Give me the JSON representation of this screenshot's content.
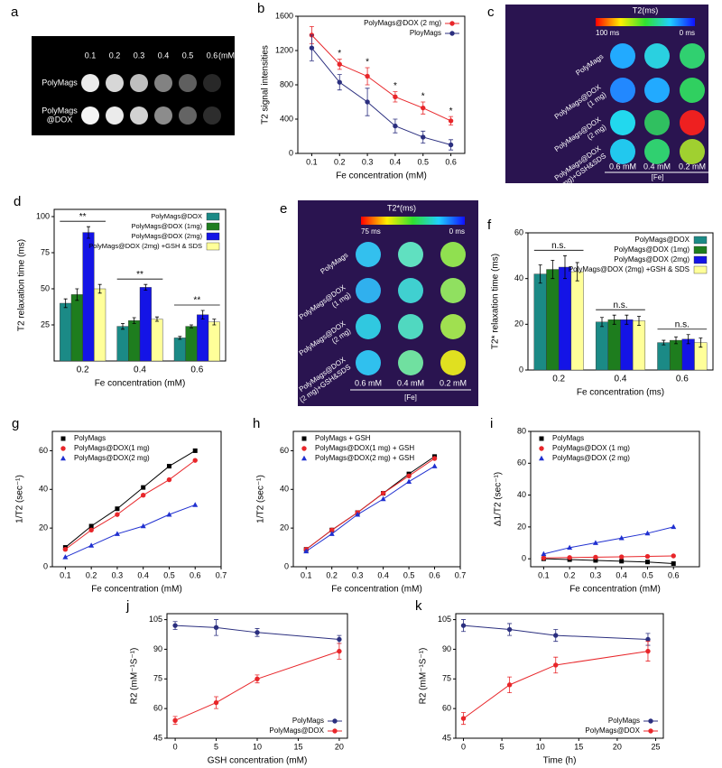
{
  "chart_data": [
    {
      "type": "line",
      "panel_label": "b",
      "xlabel": "Fe concentration (mM)",
      "ylabel": "T2 signal  intensities",
      "x": [
        0.1,
        0.2,
        0.3,
        0.4,
        0.5,
        0.6
      ],
      "xlim": [
        0.05,
        0.65
      ],
      "xticks": [
        0.1,
        0.2,
        0.3,
        0.4,
        0.5,
        0.6
      ],
      "ylim": [
        0,
        1600
      ],
      "yticks": [
        0,
        400,
        800,
        1200,
        1600
      ],
      "legend": "upper right",
      "series": [
        {
          "name": "PolyMags@DOX (2 mg)",
          "color": "#e8262a",
          "values": [
            1380,
            1040,
            900,
            660,
            530,
            380
          ],
          "errors": [
            100,
            60,
            100,
            60,
            70,
            50
          ]
        },
        {
          "name": "PloyMags",
          "color": "#2b2f7f",
          "values": [
            1230,
            830,
            600,
            320,
            190,
            100
          ],
          "errors": [
            150,
            90,
            160,
            80,
            70,
            60
          ]
        }
      ],
      "annotations": [
        null,
        "*",
        "*",
        "*",
        "*",
        "*"
      ]
    },
    {
      "type": "bar",
      "panel_label": "d",
      "xlabel": "Fe concentration (mM)",
      "ylabel": "T2 relaxation time (ms)",
      "categories": [
        "0.2",
        "0.4",
        "0.6"
      ],
      "ylim": [
        0,
        105
      ],
      "yticks": [
        25,
        50,
        75,
        100
      ],
      "legend": "upper right",
      "series": [
        {
          "name": "PolyMags@DOX",
          "color": "#1b8a86",
          "values": [
            40,
            24,
            16
          ],
          "errors": [
            3,
            2,
            1
          ]
        },
        {
          "name": "PolyMags@DOX (1mg)",
          "color": "#1e7d1e",
          "values": [
            46,
            28,
            24
          ],
          "errors": [
            4,
            2,
            1
          ]
        },
        {
          "name": "PolyMags@DOX (2mg)",
          "color": "#1414e6",
          "values": [
            89,
            51,
            32
          ],
          "errors": [
            4,
            2,
            3
          ]
        },
        {
          "name": "PolyMags@DOX (2mg) +GSH & SDS",
          "color": "#ffff99",
          "values": [
            50,
            29,
            27
          ],
          "errors": [
            3,
            1.5,
            2
          ]
        }
      ],
      "annotations": [
        "**",
        "**",
        "**"
      ]
    },
    {
      "type": "bar",
      "panel_label": "f",
      "xlabel": "Fe concentration (ms)",
      "ylabel": "T2* relaxation time (ms)",
      "categories": [
        "0.2",
        "0.4",
        "0.6"
      ],
      "ylim": [
        0,
        60
      ],
      "yticks": [
        0,
        20,
        40,
        60
      ],
      "legend": "upper right",
      "series": [
        {
          "name": "PolyMags@DOX",
          "color": "#1b8a86",
          "values": [
            42,
            21,
            12
          ],
          "errors": [
            4,
            2,
            1
          ]
        },
        {
          "name": "PolyMags@DOX (1mg)",
          "color": "#1e7d1e",
          "values": [
            44,
            22,
            13
          ],
          "errors": [
            4,
            2,
            1.5
          ]
        },
        {
          "name": "PolyMags@DOX (2mg)",
          "color": "#1414e6",
          "values": [
            45,
            22,
            13.5
          ],
          "errors": [
            5,
            2,
            2
          ]
        },
        {
          "name": "PolyMags@DOX (2mg) +GSH & SDS",
          "color": "#ffff99",
          "values": [
            43,
            21.5,
            12
          ],
          "errors": [
            4,
            2,
            2
          ]
        }
      ],
      "annotations": [
        "n.s.",
        "n.s.",
        "n.s."
      ]
    },
    {
      "type": "scatter",
      "panel_label": "g",
      "xlabel": "Fe concentration (mM)",
      "ylabel": "1/T2 (sec⁻¹)",
      "x": [
        0.1,
        0.2,
        0.3,
        0.4,
        0.5,
        0.6
      ],
      "xlim": [
        0.05,
        0.7
      ],
      "xticks": [
        0.1,
        0.2,
        0.3,
        0.4,
        0.5,
        0.6,
        0.7
      ],
      "ylim": [
        0,
        70
      ],
      "yticks": [
        0,
        20,
        40,
        60
      ],
      "legend": "upper left",
      "series": [
        {
          "name": "PolyMags",
          "color": "#000000",
          "marker": "square",
          "values": [
            10,
            21,
            30,
            41,
            52,
            60
          ]
        },
        {
          "name": "PolyMags@DOX(1 mg)",
          "color": "#e8262a",
          "marker": "circle",
          "values": [
            9,
            19,
            27,
            37,
            45,
            55
          ]
        },
        {
          "name": "PolyMags@DOX(2 mg)",
          "color": "#2030d0",
          "marker": "triangle",
          "values": [
            5,
            11,
            17,
            21,
            27,
            32
          ]
        }
      ]
    },
    {
      "type": "scatter",
      "panel_label": "h",
      "xlabel": "Fe concentration (mM)",
      "ylabel": "1/T2 (sec⁻¹)",
      "x": [
        0.1,
        0.2,
        0.3,
        0.4,
        0.5,
        0.6
      ],
      "xlim": [
        0.05,
        0.7
      ],
      "xticks": [
        0.1,
        0.2,
        0.3,
        0.4,
        0.5,
        0.6,
        0.7
      ],
      "ylim": [
        0,
        70
      ],
      "yticks": [
        0,
        20,
        40,
        60
      ],
      "legend": "upper left",
      "series": [
        {
          "name": "PolyMags + GSH",
          "color": "#000000",
          "marker": "square",
          "values": [
            9,
            19,
            28,
            38,
            48,
            57
          ]
        },
        {
          "name": "PolyMags@DOX(1 mg) + GSH",
          "color": "#e8262a",
          "marker": "circle",
          "values": [
            9,
            19,
            28,
            38,
            47,
            56
          ]
        },
        {
          "name": "PolyMags@DOX(2 mg) + GSH",
          "color": "#2030d0",
          "marker": "triangle",
          "values": [
            8,
            17,
            27,
            35,
            44,
            52
          ]
        }
      ]
    },
    {
      "type": "scatter",
      "panel_label": "i",
      "xlabel": "Fe concentration (mM)",
      "ylabel": "Δ1/T2 (sec⁻¹)",
      "x": [
        0.1,
        0.2,
        0.3,
        0.4,
        0.5,
        0.6
      ],
      "xlim": [
        0.05,
        0.7
      ],
      "xticks": [
        0.1,
        0.2,
        0.3,
        0.4,
        0.5,
        0.6
      ],
      "ylim": [
        -5,
        80
      ],
      "yticks": [
        0,
        20,
        40,
        60,
        80
      ],
      "legend": "upper left",
      "series": [
        {
          "name": "PolyMags",
          "color": "#000000",
          "marker": "square",
          "values": [
            0,
            -0.5,
            -1,
            -1.5,
            -2,
            -3
          ]
        },
        {
          "name": "PolyMags@DOX (1 mg)",
          "color": "#e8262a",
          "marker": "circle",
          "values": [
            0.5,
            0.8,
            1,
            1.2,
            1.5,
            1.8
          ]
        },
        {
          "name": "PolyMags@DOX (2 mg)",
          "color": "#2030d0",
          "marker": "triangle",
          "values": [
            3,
            7,
            10,
            13,
            16,
            20
          ]
        }
      ]
    },
    {
      "type": "line",
      "panel_label": "j",
      "xlabel": "GSH concentration (mM)",
      "ylabel": "R2 (mM⁻¹S⁻¹)",
      "x": [
        0,
        5,
        10,
        20
      ],
      "xlim": [
        -1,
        21
      ],
      "xticks": [
        0,
        5,
        10,
        15,
        20
      ],
      "ylim": [
        45,
        108
      ],
      "yticks": [
        45,
        60,
        75,
        90,
        105
      ],
      "legend": "lower right",
      "series": [
        {
          "name": "PolyMags",
          "color": "#2b2f7f",
          "values": [
            102,
            101,
            98.5,
            95
          ],
          "errors": [
            2,
            4,
            2,
            2
          ]
        },
        {
          "name": "PolyMags@DOX",
          "color": "#e8262a",
          "values": [
            54,
            63,
            75,
            89
          ],
          "errors": [
            2,
            3,
            2,
            4
          ]
        }
      ]
    },
    {
      "type": "line",
      "panel_label": "k",
      "xlabel": "Time (h)",
      "ylabel": "R2 (mM⁻¹S⁻¹)",
      "x": [
        0,
        6,
        12,
        24
      ],
      "xlim": [
        -1,
        26
      ],
      "xticks": [
        0,
        5,
        10,
        15,
        20,
        25
      ],
      "ylim": [
        45,
        108
      ],
      "yticks": [
        45,
        60,
        75,
        90,
        105
      ],
      "legend": "lower right",
      "series": [
        {
          "name": "PolyMags",
          "color": "#2b2f7f",
          "values": [
            102,
            100,
            97,
            95
          ],
          "errors": [
            3,
            3,
            3,
            3
          ]
        },
        {
          "name": "PolyMags@DOX",
          "color": "#e8262a",
          "values": [
            55,
            72,
            82,
            89
          ],
          "errors": [
            3,
            4,
            4,
            5
          ]
        }
      ]
    }
  ],
  "images": [
    {
      "panel_label": "a",
      "columns": [
        "0.1",
        "0.2",
        "0.3",
        "0.4",
        "0.5",
        "0.6"
      ],
      "unit": "(mM)",
      "rows": [
        [
          "PolyMags"
        ],
        [
          "PolyMags",
          "@DOX"
        ]
      ]
    },
    {
      "panel_label": "c",
      "colorbar_title": "T2(ms)",
      "colorbar_ticks": [
        "100 ms",
        "0 ms"
      ],
      "columns": [
        "0.6 mM",
        "0.4 mM",
        "0.2 mM"
      ],
      "axis": "[Fe]",
      "rows": [
        [
          "PolyMags"
        ],
        [
          "PolyMags@DOX",
          "(1 mg)"
        ],
        [
          "PolyMags@DOX",
          "(2 mg)"
        ],
        [
          "PolyMags@DOX",
          "(2 mg)+GSH&SDS"
        ]
      ]
    },
    {
      "panel_label": "e",
      "colorbar_title": "T2*(ms)",
      "colorbar_ticks": [
        "75 ms",
        "0 ms"
      ],
      "columns": [
        "0.6 mM",
        "0.4 mM",
        "0.2 mM"
      ],
      "axis": "[Fe]",
      "rows": [
        [
          "PolyMags"
        ],
        [
          "PolyMags@DOX",
          "(1 mg)"
        ],
        [
          "PolyMags@DOX",
          "(2 mg)"
        ],
        [
          "PolyMags@DOX",
          "(2 mg)+GSH&SDS"
        ]
      ]
    }
  ]
}
